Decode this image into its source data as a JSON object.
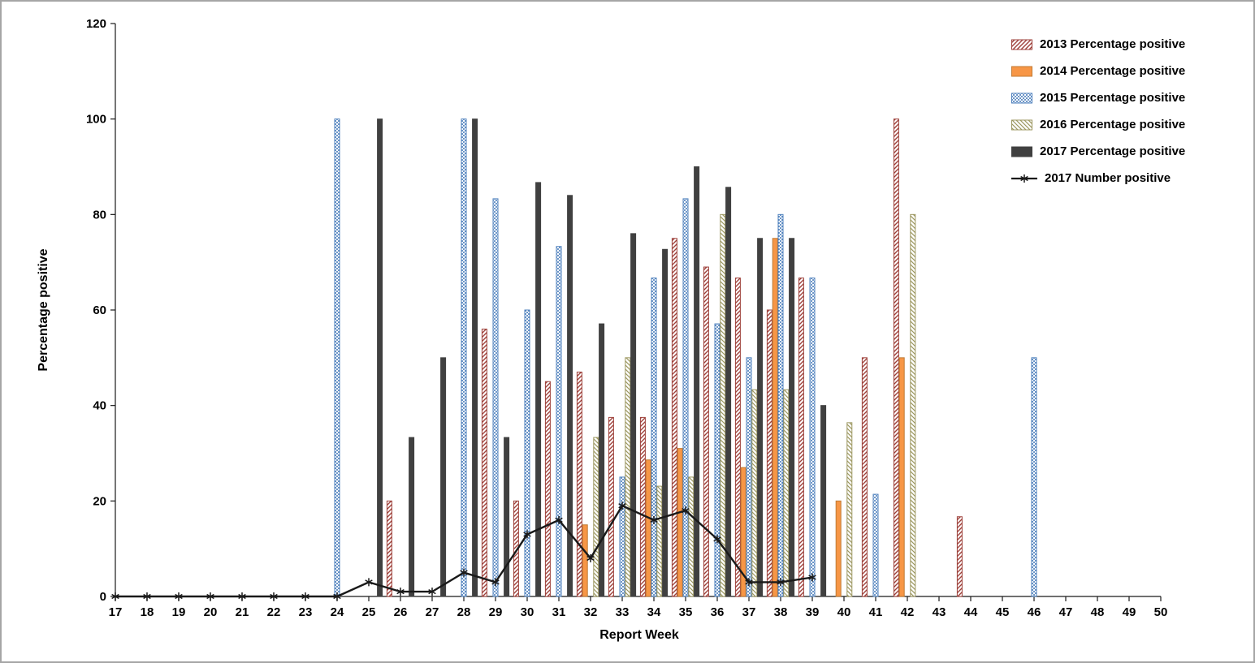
{
  "chart_data": {
    "type": "bar",
    "title": "",
    "xlabel": "Report Week",
    "ylabel": "Percentage positive",
    "ylim": [
      0,
      120
    ],
    "yticks": [
      0,
      20,
      40,
      60,
      80,
      100,
      120
    ],
    "grid": false,
    "legend_position": "top-right",
    "categories": [
      17,
      18,
      19,
      20,
      21,
      22,
      23,
      24,
      25,
      26,
      27,
      28,
      29,
      30,
      31,
      32,
      33,
      34,
      35,
      36,
      37,
      38,
      39,
      40,
      41,
      42,
      43,
      44,
      45,
      46,
      47,
      48,
      49,
      50
    ],
    "series": [
      {
        "name": "2013 Percentage positive",
        "type": "bar",
        "pattern": "diag-up",
        "color": "#9E413B",
        "values": [
          null,
          null,
          null,
          null,
          null,
          null,
          null,
          null,
          null,
          20,
          null,
          null,
          56,
          20,
          45,
          47,
          37.5,
          37.5,
          75,
          69,
          66.7,
          60,
          66.7,
          null,
          50,
          100,
          null,
          16.7,
          null,
          null,
          null,
          null,
          null,
          null
        ]
      },
      {
        "name": "2014 Percentage positive",
        "type": "bar",
        "pattern": "solid",
        "color": "#F79646",
        "border": "#C07A33",
        "values": [
          null,
          null,
          null,
          null,
          null,
          null,
          null,
          null,
          null,
          null,
          null,
          null,
          null,
          null,
          null,
          15,
          null,
          28.6,
          31,
          null,
          27,
          75,
          null,
          20,
          null,
          50,
          null,
          null,
          null,
          null,
          null,
          null,
          null,
          null
        ]
      },
      {
        "name": "2015 Percentage positive",
        "type": "bar",
        "pattern": "dots",
        "color": "#4F81BD",
        "values": [
          null,
          null,
          null,
          null,
          null,
          null,
          null,
          100,
          null,
          null,
          null,
          100,
          83.3,
          60,
          73.3,
          null,
          25,
          66.7,
          83.3,
          57.1,
          50,
          80,
          66.7,
          null,
          21.4,
          null,
          null,
          null,
          null,
          50,
          null,
          null,
          null,
          null
        ]
      },
      {
        "name": "2016 Percentage positive",
        "type": "bar",
        "pattern": "diag-down",
        "color": "#9C9760",
        "values": [
          null,
          null,
          null,
          null,
          null,
          null,
          null,
          null,
          null,
          null,
          null,
          null,
          null,
          null,
          null,
          33.3,
          50,
          23.1,
          25,
          80,
          43.3,
          43.3,
          null,
          36.4,
          null,
          80,
          null,
          null,
          null,
          null,
          null,
          null,
          null,
          null
        ]
      },
      {
        "name": "2017 Percentage positive",
        "type": "bar",
        "pattern": "solid",
        "color": "#404040",
        "values": [
          null,
          null,
          null,
          null,
          null,
          null,
          null,
          null,
          100,
          33.3,
          50,
          100,
          33.3,
          86.7,
          84,
          57.1,
          76,
          72.7,
          90,
          85.7,
          75,
          75,
          40,
          null,
          null,
          null,
          null,
          null,
          null,
          null,
          null,
          null,
          null,
          null
        ]
      },
      {
        "name": "2017 Number positive",
        "type": "line",
        "marker": "asterisk",
        "color": "#1a1a1a",
        "values": [
          0,
          0,
          0,
          0,
          0,
          0,
          0,
          0,
          3,
          1,
          1,
          5,
          3,
          13,
          16,
          8,
          19,
          16,
          18,
          12,
          3,
          3,
          4,
          null,
          null,
          null,
          null,
          null,
          null,
          null,
          null,
          null,
          null,
          null
        ]
      }
    ]
  }
}
